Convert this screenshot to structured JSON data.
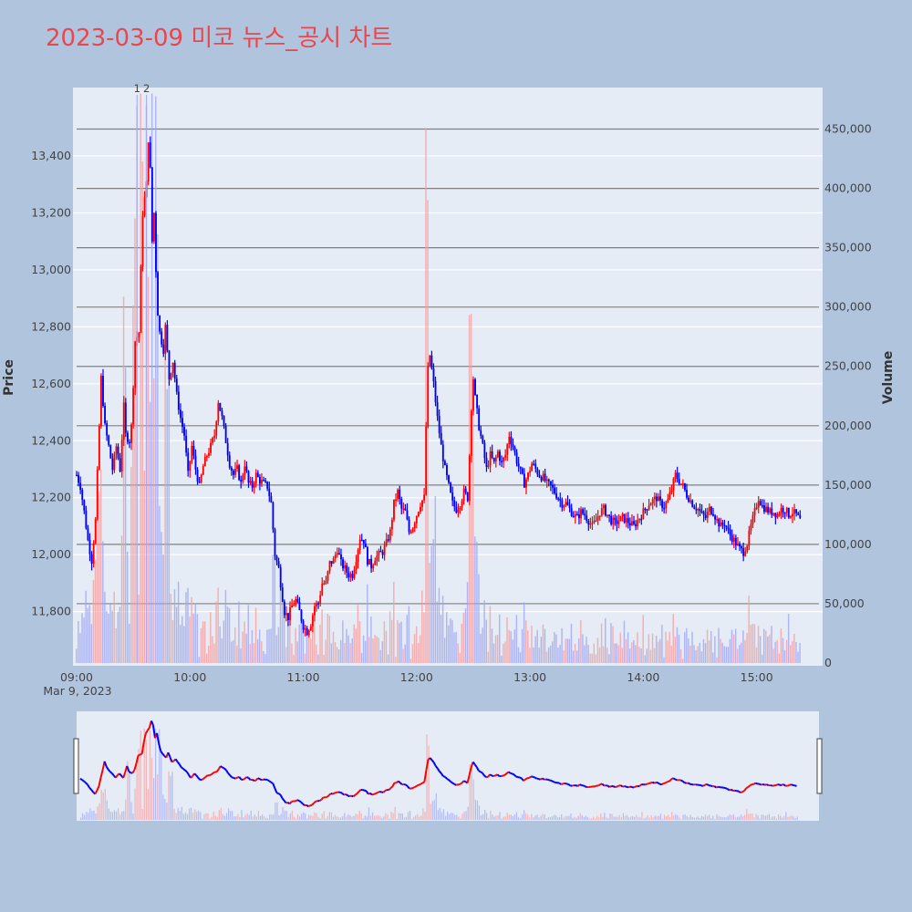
{
  "colors": {
    "page_bg": "#b0c4de",
    "plot_bg": "#e5ecf6",
    "title": "#e8474f",
    "up": "#ff0000",
    "down": "#0000ff",
    "volume_up": "#f4a0a0",
    "volume_down": "#a0a8f4",
    "hline": "#808080",
    "grid": "#ffffff"
  },
  "chart_data": {
    "type": "candlestick",
    "title": "2023-03-09 미코 뉴스_공시 차트",
    "ylabel": "Price",
    "y2label": "Volume",
    "ylim": [
      11610,
      13640
    ],
    "y2lim": [
      0,
      485000
    ],
    "price_ticks": [
      "11,800",
      "12,000",
      "12,200",
      "12,400",
      "12,600",
      "12,800",
      "13,000",
      "13,200",
      "13,400"
    ],
    "price_tick_values": [
      11800,
      12000,
      12200,
      12400,
      12600,
      12800,
      13000,
      13200,
      13400
    ],
    "volume_ticks": [
      "0",
      "50,000",
      "100,000",
      "150,000",
      "200,000",
      "250,000",
      "300,000",
      "350,000",
      "400,000",
      "450,000"
    ],
    "volume_tick_values": [
      0,
      50000,
      100000,
      150000,
      200000,
      250000,
      300000,
      350000,
      400000,
      450000
    ],
    "x_ticks": [
      "09:00",
      "10:00",
      "11:00",
      "12:00",
      "13:00",
      "14:00",
      "15:00"
    ],
    "x_tick_minutes": [
      0,
      60,
      120,
      180,
      240,
      300,
      360
    ],
    "x_sublabel": "Mar 9, 2023",
    "xlim_minutes": [
      0,
      393
    ],
    "annotations": [
      {
        "text": "1",
        "minute": 32
      },
      {
        "text": "2",
        "minute": 37
      }
    ],
    "volume_hlines": [
      50000,
      100000,
      150000,
      200000,
      250000,
      300000,
      350000,
      400000,
      450000
    ],
    "price_path": [
      [
        0,
        12280
      ],
      [
        2,
        12240
      ],
      [
        4,
        12150
      ],
      [
        6,
        12050
      ],
      [
        8,
        11980
      ],
      [
        10,
        12120
      ],
      [
        12,
        12450
      ],
      [
        13,
        12620
      ],
      [
        15,
        12450
      ],
      [
        17,
        12380
      ],
      [
        19,
        12300
      ],
      [
        21,
        12380
      ],
      [
        23,
        12300
      ],
      [
        25,
        12520
      ],
      [
        26,
        12420
      ],
      [
        28,
        12400
      ],
      [
        29,
        12450
      ],
      [
        30,
        12600
      ],
      [
        31,
        12750
      ],
      [
        33,
        12780
      ],
      [
        34,
        13000
      ],
      [
        35,
        13200
      ],
      [
        36,
        13250
      ],
      [
        37,
        13300
      ],
      [
        38,
        13460
      ],
      [
        39,
        13350
      ],
      [
        40,
        13100
      ],
      [
        41,
        13200
      ],
      [
        42,
        13000
      ],
      [
        43,
        12850
      ],
      [
        44,
        12780
      ],
      [
        46,
        12720
      ],
      [
        47,
        12800
      ],
      [
        49,
        12620
      ],
      [
        51,
        12680
      ],
      [
        53,
        12560
      ],
      [
        55,
        12480
      ],
      [
        57,
        12420
      ],
      [
        59,
        12280
      ],
      [
        61,
        12380
      ],
      [
        63,
        12300
      ],
      [
        65,
        12240
      ],
      [
        67,
        12310
      ],
      [
        69,
        12350
      ],
      [
        71,
        12380
      ],
      [
        73,
        12420
      ],
      [
        75,
        12540
      ],
      [
        77,
        12480
      ],
      [
        79,
        12400
      ],
      [
        81,
        12320
      ],
      [
        83,
        12280
      ],
      [
        85,
        12300
      ],
      [
        87,
        12250
      ],
      [
        89,
        12320
      ],
      [
        91,
        12250
      ],
      [
        93,
        12240
      ],
      [
        95,
        12280
      ],
      [
        97,
        12260
      ],
      [
        99,
        12250
      ],
      [
        101,
        12240
      ],
      [
        103,
        12180
      ],
      [
        105,
        12000
      ],
      [
        107,
        11950
      ],
      [
        109,
        11850
      ],
      [
        110,
        11800
      ],
      [
        112,
        11780
      ],
      [
        114,
        11820
      ],
      [
        116,
        11840
      ],
      [
        118,
        11800
      ],
      [
        120,
        11750
      ],
      [
        122,
        11730
      ],
      [
        124,
        11760
      ],
      [
        126,
        11820
      ],
      [
        128,
        11830
      ],
      [
        130,
        11900
      ],
      [
        132,
        11900
      ],
      [
        134,
        11970
      ],
      [
        136,
        11980
      ],
      [
        138,
        12020
      ],
      [
        140,
        11970
      ],
      [
        142,
        11950
      ],
      [
        144,
        11930
      ],
      [
        146,
        11930
      ],
      [
        148,
        11990
      ],
      [
        150,
        12060
      ],
      [
        152,
        12050
      ],
      [
        154,
        11980
      ],
      [
        156,
        11960
      ],
      [
        158,
        11990
      ],
      [
        160,
        12000
      ],
      [
        162,
        12010
      ],
      [
        164,
        12040
      ],
      [
        166,
        12080
      ],
      [
        168,
        12180
      ],
      [
        170,
        12220
      ],
      [
        172,
        12160
      ],
      [
        174,
        12150
      ],
      [
        176,
        12080
      ],
      [
        178,
        12100
      ],
      [
        180,
        12140
      ],
      [
        182,
        12180
      ],
      [
        184,
        12200
      ],
      [
        185,
        12450
      ],
      [
        186,
        12650
      ],
      [
        187,
        12700
      ],
      [
        189,
        12600
      ],
      [
        191,
        12480
      ],
      [
        193,
        12380
      ],
      [
        195,
        12300
      ],
      [
        197,
        12240
      ],
      [
        199,
        12180
      ],
      [
        201,
        12160
      ],
      [
        203,
        12180
      ],
      [
        205,
        12220
      ],
      [
        207,
        12200
      ],
      [
        208,
        12350
      ],
      [
        209,
        12520
      ],
      [
        210,
        12620
      ],
      [
        211,
        12550
      ],
      [
        213,
        12450
      ],
      [
        215,
        12380
      ],
      [
        217,
        12300
      ],
      [
        219,
        12350
      ],
      [
        221,
        12320
      ],
      [
        223,
        12360
      ],
      [
        225,
        12320
      ],
      [
        227,
        12350
      ],
      [
        229,
        12420
      ],
      [
        231,
        12380
      ],
      [
        233,
        12330
      ],
      [
        235,
        12290
      ],
      [
        237,
        12250
      ],
      [
        239,
        12280
      ],
      [
        241,
        12320
      ],
      [
        243,
        12300
      ],
      [
        245,
        12280
      ],
      [
        247,
        12270
      ],
      [
        249,
        12250
      ],
      [
        251,
        12240
      ],
      [
        253,
        12220
      ],
      [
        255,
        12200
      ],
      [
        257,
        12180
      ],
      [
        259,
        12180
      ],
      [
        261,
        12160
      ],
      [
        263,
        12140
      ],
      [
        265,
        12130
      ],
      [
        267,
        12150
      ],
      [
        269,
        12140
      ],
      [
        271,
        12120
      ],
      [
        273,
        12100
      ],
      [
        275,
        12120
      ],
      [
        277,
        12150
      ],
      [
        279,
        12160
      ],
      [
        281,
        12140
      ],
      [
        283,
        12120
      ],
      [
        285,
        12110
      ],
      [
        287,
        12120
      ],
      [
        289,
        12130
      ],
      [
        291,
        12120
      ],
      [
        293,
        12110
      ],
      [
        295,
        12100
      ],
      [
        297,
        12120
      ],
      [
        299,
        12140
      ],
      [
        301,
        12160
      ],
      [
        303,
        12180
      ],
      [
        305,
        12190
      ],
      [
        307,
        12200
      ],
      [
        309,
        12180
      ],
      [
        311,
        12170
      ],
      [
        313,
        12190
      ],
      [
        315,
        12230
      ],
      [
        317,
        12280
      ],
      [
        319,
        12260
      ],
      [
        321,
        12240
      ],
      [
        323,
        12210
      ],
      [
        325,
        12190
      ],
      [
        327,
        12170
      ],
      [
        329,
        12160
      ],
      [
        331,
        12140
      ],
      [
        333,
        12130
      ],
      [
        335,
        12160
      ],
      [
        337,
        12150
      ],
      [
        339,
        12120
      ],
      [
        341,
        12100
      ],
      [
        343,
        12110
      ],
      [
        345,
        12080
      ],
      [
        347,
        12060
      ],
      [
        349,
        12040
      ],
      [
        351,
        12020
      ],
      [
        353,
        12010
      ],
      [
        355,
        12040
      ],
      [
        357,
        12100
      ],
      [
        359,
        12150
      ],
      [
        361,
        12200
      ],
      [
        363,
        12170
      ],
      [
        365,
        12160
      ],
      [
        367,
        12150
      ],
      [
        369,
        12150
      ],
      [
        371,
        12140
      ],
      [
        373,
        12160
      ],
      [
        375,
        12160
      ],
      [
        377,
        12140
      ],
      [
        379,
        12150
      ],
      [
        381,
        12140
      ],
      [
        382,
        12130
      ],
      [
        383,
        12120
      ]
    ]
  }
}
